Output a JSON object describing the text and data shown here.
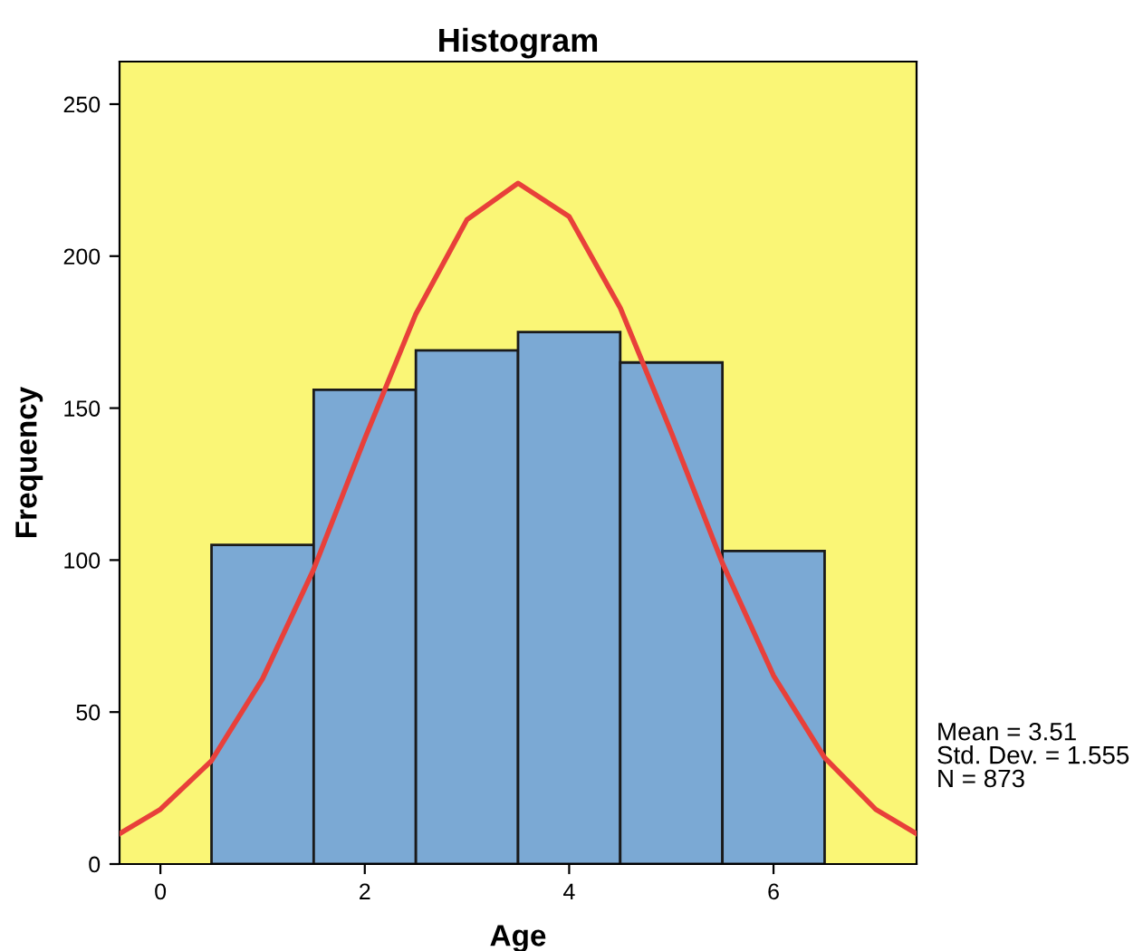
{
  "chart_data": {
    "type": "histogram",
    "title": "Histogram",
    "xlabel": "Age",
    "ylabel": "Frequency",
    "bins": [
      0.5,
      1.5,
      2.5,
      3.5,
      4.5,
      5.5,
      6.5
    ],
    "values": [
      105,
      156,
      169,
      175,
      165,
      103
    ],
    "color": "#7ba9d4",
    "series": [
      {
        "type": "line",
        "color": "#e8403a",
        "x": [
          -0.4,
          0,
          0.5,
          1,
          1.5,
          2,
          2.5,
          3,
          3.5,
          4,
          4.5,
          5,
          5.5,
          6,
          6.5,
          7,
          7.4
        ],
        "values": [
          10,
          18,
          34,
          61,
          97,
          140,
          181,
          212,
          224,
          213,
          183,
          142,
          99,
          62,
          35,
          18,
          10
        ]
      }
    ],
    "xlim": [
      -0.4,
      7.4
    ],
    "ylim": [
      0,
      264
    ],
    "xticks": [
      0,
      2,
      4,
      6
    ],
    "yticks": [
      0,
      50,
      100,
      150,
      200,
      250
    ],
    "grid": false,
    "annotations": [
      "Mean = 3.51\nStd. Dev. = 1.555\nN = 873"
    ]
  }
}
